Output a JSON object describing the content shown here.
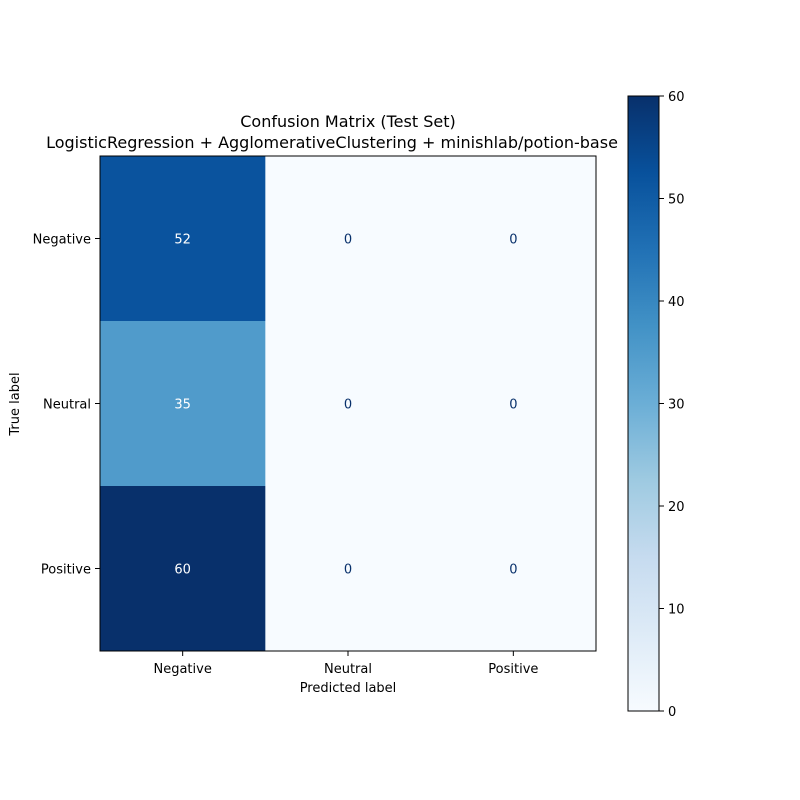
{
  "chart_data": {
    "type": "heatmap",
    "title": "Confusion Matrix (Test Set)",
    "subtitle": "LogisticRegression + AgglomerativeClustering + minishlab/potion-base",
    "xlabel": "Predicted label",
    "ylabel": "True label",
    "x_categories": [
      "Negative",
      "Neutral",
      "Positive"
    ],
    "y_categories": [
      "Negative",
      "Neutral",
      "Positive"
    ],
    "values": [
      [
        52,
        0,
        0
      ],
      [
        35,
        0,
        0
      ],
      [
        60,
        0,
        0
      ]
    ],
    "colorbar": {
      "range": [
        0,
        60
      ],
      "ticks": [
        0,
        10,
        20,
        30,
        40,
        50,
        60
      ],
      "colormap": "Blues"
    },
    "colors": {
      "low": "#f7fbff",
      "high": "#08306b",
      "text_on_dark": "#ffffff",
      "text_on_light": "#08306b"
    }
  }
}
